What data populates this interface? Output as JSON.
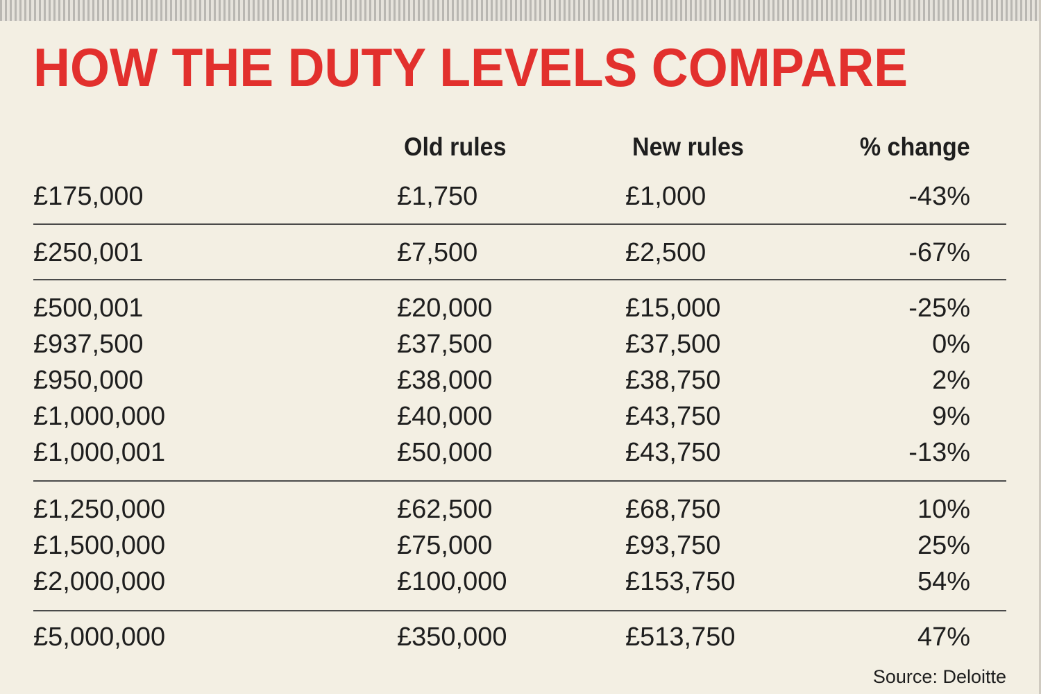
{
  "chart_data": {
    "type": "table",
    "title": "HOW THE DUTY LEVELS COMPARE",
    "columns": [
      "",
      "Old  rules",
      "New   rules",
      "% change"
    ],
    "rows": [
      {
        "price": "£175,000",
        "old": "£1,750",
        "new": "£1,000",
        "change": "-43%"
      },
      {
        "price": "£250,001",
        "old": "£7,500",
        "new": "£2,500",
        "change": "-67%"
      },
      {
        "price": "£500,001",
        "old": "£20,000",
        "new": "£15,000",
        "change": "-25%"
      },
      {
        "price": "£937,500",
        "old": "£37,500",
        "new": "£37,500",
        "change": "0%"
      },
      {
        "price": "£950,000",
        "old": "£38,000",
        "new": "£38,750",
        "change": "2%"
      },
      {
        "price": "£1,000,000",
        "old": "£40,000",
        "new": "£43,750",
        "change": "9%"
      },
      {
        "price": "£1,000,001",
        "old": "£50,000",
        "new": "£43,750",
        "change": "-13%"
      },
      {
        "price": "£1,250,000",
        "old": "£62,500",
        "new": "£68,750",
        "change": "10%"
      },
      {
        "price": "£1,500,000",
        "old": "£75,000",
        "new": "£93,750",
        "change": "25%"
      },
      {
        "price": "£2,000,000",
        "old": "£100,000",
        "new": "£153,750",
        "change": "54%"
      },
      {
        "price": "£5,000,000",
        "old": "£350,000",
        "new": "£513,750",
        "change": "47%"
      }
    ],
    "group_breaks_after_row": [
      0,
      1,
      6,
      9
    ],
    "source": "Source: Deloitte"
  },
  "colors": {
    "title": "#e2302d",
    "background": "#f3efe3",
    "text": "#1e1e1e",
    "rule": "#4a4a4a"
  }
}
